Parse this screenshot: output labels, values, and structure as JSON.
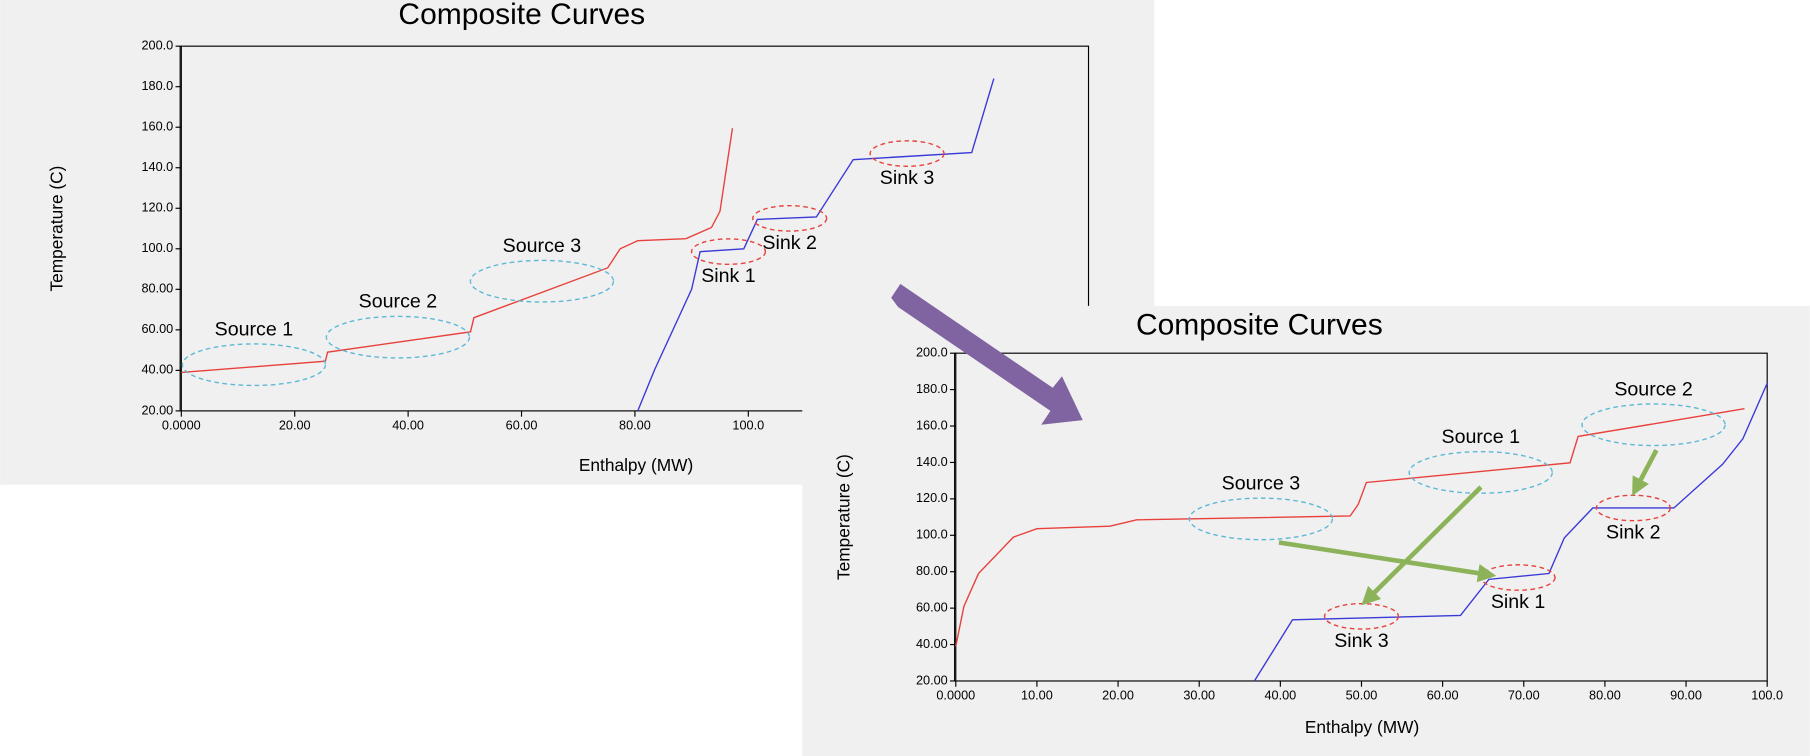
{
  "chart_data": [
    {
      "type": "line",
      "title": "Composite Curves",
      "x_label": "Enthalpy (MW)",
      "y_label": "Temperature (C)",
      "xlim": [
        0,
        160
      ],
      "ylim": [
        20,
        200
      ],
      "xticks": [
        {
          "value": 0,
          "label": "0.0000"
        },
        {
          "value": 20,
          "label": "20.00"
        },
        {
          "value": 40,
          "label": "40.00"
        },
        {
          "value": 60,
          "label": "60.00"
        },
        {
          "value": 80,
          "label": "80.00"
        },
        {
          "value": 100,
          "label": "100.0"
        }
      ],
      "yticks": [
        {
          "value": 20,
          "label": "20.00"
        },
        {
          "value": 40,
          "label": "40.00"
        },
        {
          "value": 60,
          "label": "60.00"
        },
        {
          "value": 80,
          "label": "80.00"
        },
        {
          "value": 100,
          "label": "100.0"
        },
        {
          "value": 120,
          "label": "120.0"
        },
        {
          "value": 140,
          "label": "140.0"
        },
        {
          "value": 160,
          "label": "160.0"
        },
        {
          "value": 180,
          "label": "180.0"
        },
        {
          "value": 200,
          "label": "200.0"
        }
      ],
      "series": [
        {
          "color": "#e8413c",
          "x": [
            0,
            25.4,
            25.8,
            51,
            51.6,
            75.2,
            77.4,
            80.5,
            89,
            93.5,
            95,
            97.2
          ],
          "values": [
            39,
            44.5,
            49,
            59,
            66,
            90.6,
            100,
            104,
            105,
            110.5,
            118.5,
            159.5
          ]
        },
        {
          "color": "#3a3ad8",
          "x": [
            80.5,
            83.5,
            90,
            91.5,
            99.2,
            101.6,
            112,
            118.5,
            139.4,
            143.3
          ],
          "values": [
            20,
            40.5,
            80,
            98.6,
            100,
            114.5,
            115.7,
            144,
            147.5,
            184
          ]
        }
      ],
      "annotations": [
        {
          "text": "Source 1",
          "x": 12.8,
          "y": 42.8,
          "position": "above",
          "color": "#5bb8d6"
        },
        {
          "text": "Source 2",
          "x": 38.2,
          "y": 56.4,
          "position": "above",
          "color": "#5bb8d6"
        },
        {
          "text": "Source 3",
          "x": 63.6,
          "y": 84,
          "position": "above",
          "color": "#5bb8d6"
        },
        {
          "text": "Sink 1",
          "x": 96.5,
          "y": 98.6,
          "position": "below",
          "color": "#e8413c"
        },
        {
          "text": "Sink 2",
          "x": 107.3,
          "y": 115,
          "position": "below",
          "color": "#e8413c"
        },
        {
          "text": "Sink 3",
          "x": 128,
          "y": 147,
          "position": "below",
          "color": "#e8413c"
        }
      ]
    },
    {
      "type": "line",
      "title": "Composite Curves",
      "x_label": "Enthalpy (MW)",
      "y_label": "Temperature (C)",
      "xlim": [
        0,
        100
      ],
      "ylim": [
        20,
        200
      ],
      "xticks": [
        {
          "value": 0,
          "label": "0.0000"
        },
        {
          "value": 10,
          "label": "10.00"
        },
        {
          "value": 20,
          "label": "20.00"
        },
        {
          "value": 30,
          "label": "30.00"
        },
        {
          "value": 40,
          "label": "40.00"
        },
        {
          "value": 50,
          "label": "50.00"
        },
        {
          "value": 60,
          "label": "60.00"
        },
        {
          "value": 70,
          "label": "70.00"
        },
        {
          "value": 80,
          "label": "80.00"
        },
        {
          "value": 90,
          "label": "90.00"
        },
        {
          "value": 100,
          "label": "100.0"
        }
      ],
      "yticks": [
        {
          "value": 20,
          "label": "20.00"
        },
        {
          "value": 40,
          "label": "40.00"
        },
        {
          "value": 60,
          "label": "60.00"
        },
        {
          "value": 80,
          "label": "80.00"
        },
        {
          "value": 100,
          "label": "100.0"
        },
        {
          "value": 120,
          "label": "120.0"
        },
        {
          "value": 140,
          "label": "140.0"
        },
        {
          "value": 160,
          "label": "160.0"
        },
        {
          "value": 180,
          "label": "180.0"
        },
        {
          "value": 200,
          "label": "200.0"
        }
      ],
      "series": [
        {
          "color": "#e8413c",
          "x": [
            0,
            1,
            2.8,
            7.1,
            10,
            19,
            22.3,
            48.6,
            49.6,
            50.6,
            75.7,
            76.7,
            97.2
          ],
          "values": [
            39,
            61,
            79,
            99,
            103.6,
            105,
            108.5,
            110.6,
            117,
            129,
            139.8,
            154.3,
            169.5
          ]
        },
        {
          "color": "#3a3ad8",
          "x": [
            36.8,
            41.5,
            62.2,
            65.7,
            73.1,
            75,
            78.5,
            88.5,
            94.5,
            97,
            100
          ],
          "values": [
            20,
            53.6,
            56,
            75.8,
            79,
            98.6,
            115,
            115,
            139,
            153,
            183.5
          ]
        }
      ],
      "annotations": [
        {
          "text": "Source 3",
          "x": 37.6,
          "y": 109,
          "position": "above",
          "color": "#5bb8d6"
        },
        {
          "text": "Source 1",
          "x": 64.7,
          "y": 134.5,
          "position": "above",
          "color": "#5bb8d6"
        },
        {
          "text": "Source 2",
          "x": 86,
          "y": 160.7,
          "position": "above",
          "color": "#5bb8d6"
        },
        {
          "text": "Sink 3",
          "x": 50,
          "y": 55.5,
          "position": "below",
          "color": "#e8413c"
        },
        {
          "text": "Sink 1",
          "x": 69.3,
          "y": 76.8,
          "position": "below",
          "color": "#e8413c"
        },
        {
          "text": "Sink 2",
          "x": 83.5,
          "y": 115,
          "position": "below",
          "color": "#e8413c"
        }
      ]
    }
  ]
}
